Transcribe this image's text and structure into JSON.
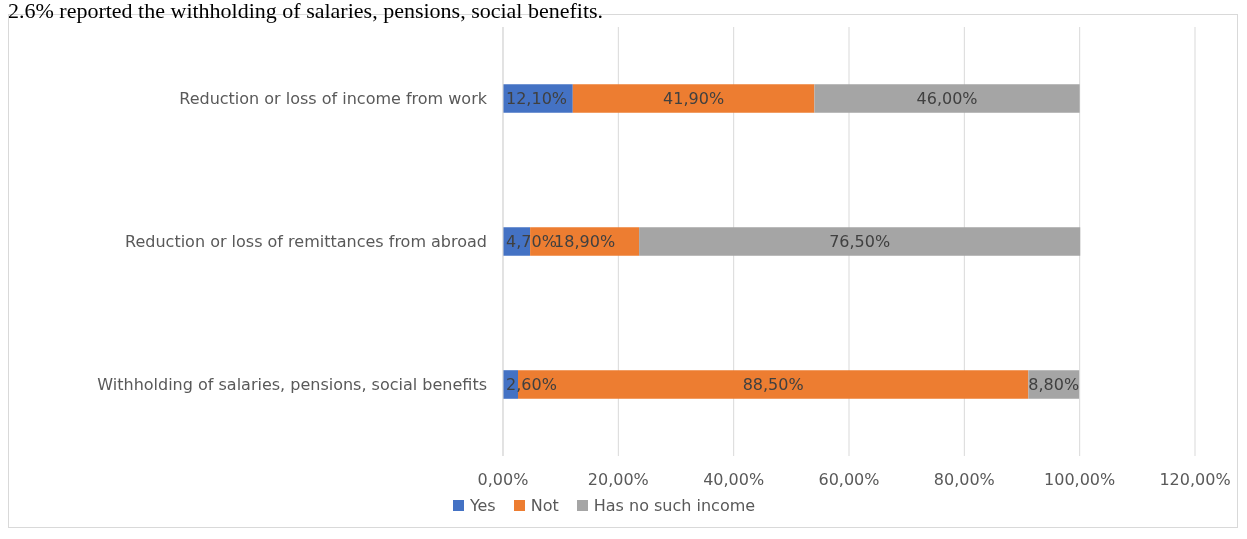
{
  "chart_data": {
    "type": "bar",
    "orientation": "horizontal",
    "stacked": true,
    "annotations": [
      "2.6% reported the withholding of salaries, pensions, social benefits."
    ],
    "categories": [
      "Reduction or loss of income from work",
      "Reduction or loss of remittances from abroad",
      "Withholding of salaries, pensions, social benefits"
    ],
    "series": [
      {
        "name": "Yes",
        "color": "#4472c4",
        "values": [
          12.1,
          4.7,
          2.6
        ],
        "value_labels": [
          "12,10%",
          "4,70%",
          "2,60%"
        ]
      },
      {
        "name": "Not",
        "color": "#ed7d31",
        "values": [
          41.9,
          18.9,
          88.5
        ],
        "value_labels": [
          "41,90%",
          "18,90%",
          "88,50%"
        ]
      },
      {
        "name": "Has no such income",
        "color": "#a5a5a5",
        "values": [
          46.0,
          76.5,
          8.8
        ],
        "value_labels": [
          "46,00%",
          "76,50%",
          "8,80%"
        ]
      }
    ],
    "xlim": [
      0,
      120
    ],
    "xticks": [
      {
        "value": 0,
        "label": "0,00%"
      },
      {
        "value": 20,
        "label": "20,00%"
      },
      {
        "value": 40,
        "label": "40,00%"
      },
      {
        "value": 60,
        "label": "60,00%"
      },
      {
        "value": 80,
        "label": "80,00%"
      },
      {
        "value": 100,
        "label": "100,00%"
      },
      {
        "value": 120,
        "label": "120,00%"
      }
    ],
    "grid": "x",
    "legend": "bottom"
  }
}
